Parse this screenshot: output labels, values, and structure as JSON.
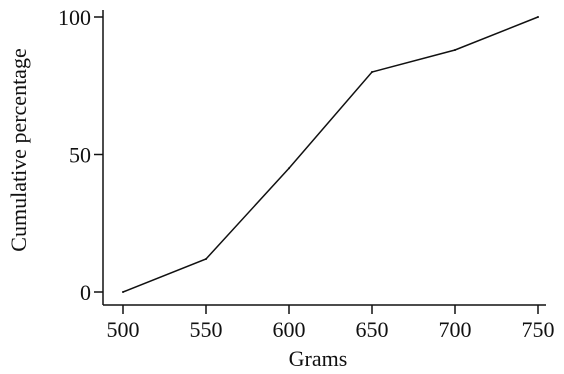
{
  "chart_data": {
    "type": "line",
    "title": "",
    "xlabel": "Grams",
    "ylabel": "Cumulative percentage",
    "x": [
      500,
      550,
      600,
      650,
      700,
      750
    ],
    "series": [
      {
        "values": [
          0,
          12,
          45,
          80,
          88,
          100
        ]
      }
    ],
    "xlim": [
      500,
      750
    ],
    "ylim": [
      0,
      100
    ],
    "xticks": [
      "500",
      "550",
      "600",
      "650",
      "700",
      "750"
    ],
    "yticks": [
      "0",
      "50",
      "100"
    ],
    "grid": false,
    "line_color": "#111111"
  }
}
